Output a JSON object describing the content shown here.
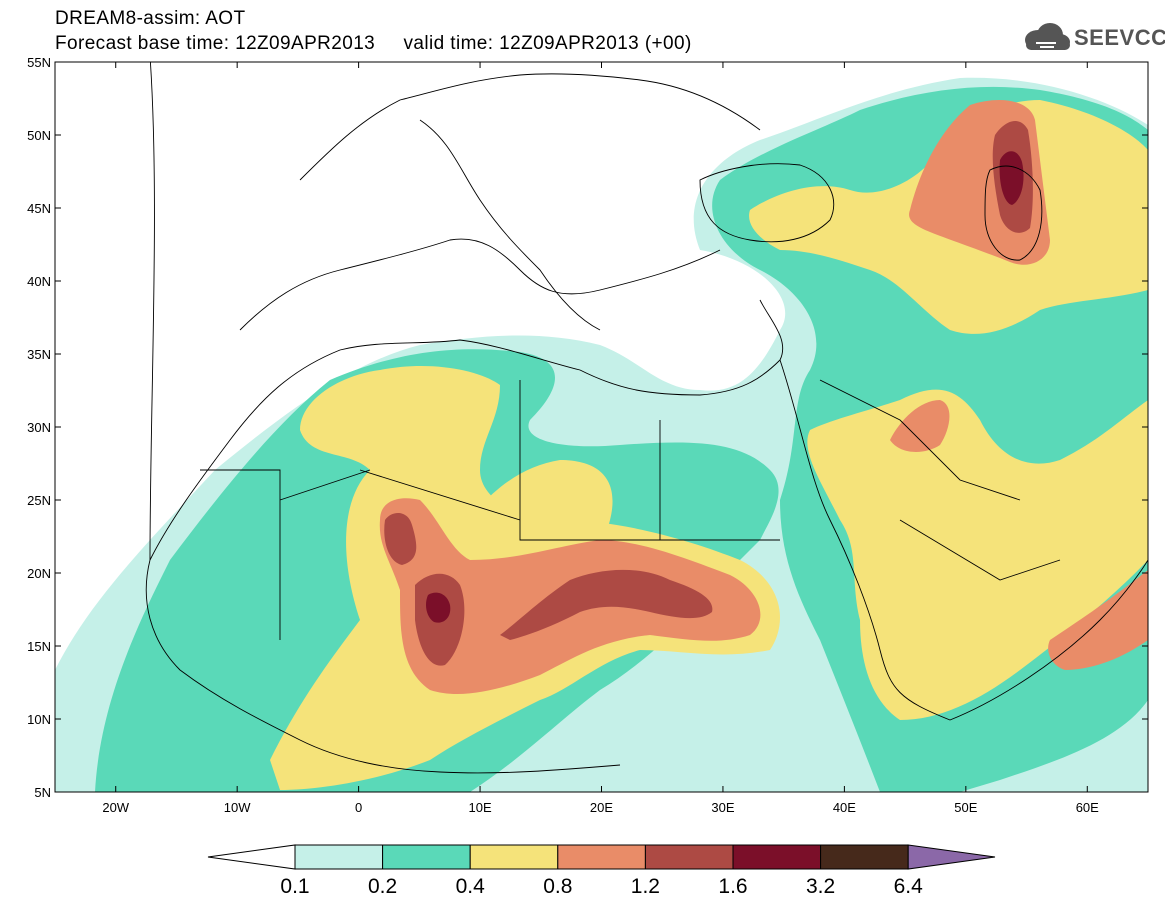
{
  "header": {
    "title": "DREAM8-assim: AOT",
    "subtitle": "Forecast base time: 12Z09APR2013     valid time: 12Z09APR2013 (+00)"
  },
  "logo": {
    "text": "SEEVCCC",
    "icon": "cloud-icon"
  },
  "map": {
    "variable": "AOT",
    "lon_range": [
      -25,
      65
    ],
    "lat_range": [
      5,
      55
    ],
    "lat_ticks": [
      {
        "value": 55,
        "label": "55N"
      },
      {
        "value": 50,
        "label": "50N"
      },
      {
        "value": 45,
        "label": "45N"
      },
      {
        "value": 40,
        "label": "40N"
      },
      {
        "value": 35,
        "label": "35N"
      },
      {
        "value": 30,
        "label": "30N"
      },
      {
        "value": 25,
        "label": "25N"
      },
      {
        "value": 20,
        "label": "20N"
      },
      {
        "value": 15,
        "label": "15N"
      },
      {
        "value": 10,
        "label": "10N"
      },
      {
        "value": 5,
        "label": "5N"
      }
    ],
    "lon_ticks": [
      {
        "value": -20,
        "label": "20W"
      },
      {
        "value": -10,
        "label": "10W"
      },
      {
        "value": 0,
        "label": "0"
      },
      {
        "value": 10,
        "label": "10E"
      },
      {
        "value": 20,
        "label": "20E"
      },
      {
        "value": 30,
        "label": "30E"
      },
      {
        "value": 40,
        "label": "40E"
      },
      {
        "value": 50,
        "label": "50E"
      },
      {
        "value": 60,
        "label": "60E"
      }
    ]
  },
  "colorbar": {
    "labels": [
      "0.1",
      "0.2",
      "0.4",
      "0.8",
      "1.2",
      "1.6",
      "3.2",
      "6.4"
    ],
    "colors": {
      "under": "#ffffff",
      "b1": "#c5f0e8",
      "b2": "#5ad9b8",
      "b3": "#f5e37a",
      "b4": "#e98c68",
      "b5": "#ad4a44",
      "b6": "#7b0f29",
      "b7": "#46291b",
      "over": "#8b68a8"
    }
  }
}
